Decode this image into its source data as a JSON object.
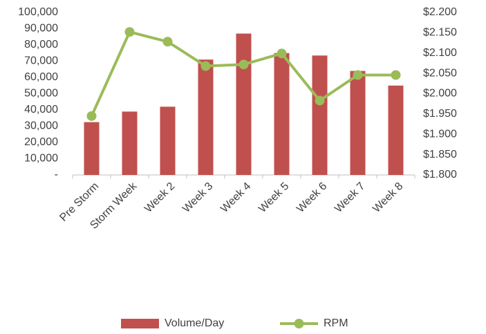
{
  "chart_data": {
    "type": "combo",
    "categories": [
      "Pre Storm",
      "Storm Week",
      "Week 2",
      "Week 3",
      "Week 4",
      "Week 5",
      "Week 6",
      "Week 7",
      "Week 8"
    ],
    "series": [
      {
        "name": "Volume/Day",
        "type": "bar",
        "color": "#c0504d",
        "values": [
          32500,
          39000,
          42000,
          71000,
          87000,
          75000,
          73500,
          64000,
          55000
        ]
      },
      {
        "name": "RPM",
        "type": "line",
        "axis": "y2",
        "color": "#9bbb59",
        "values": [
          1.945,
          2.152,
          2.128,
          2.068,
          2.072,
          2.099,
          1.983,
          2.046,
          2.046
        ]
      }
    ],
    "ylim": [
      0,
      100000
    ],
    "yticks": [
      {
        "value": 0,
        "label": "-"
      },
      {
        "value": 10000,
        "label": "10,000"
      },
      {
        "value": 20000,
        "label": "20,000"
      },
      {
        "value": 30000,
        "label": "30,000"
      },
      {
        "value": 40000,
        "label": "40,000"
      },
      {
        "value": 50000,
        "label": "50,000"
      },
      {
        "value": 60000,
        "label": "60,000"
      },
      {
        "value": 70000,
        "label": "70,000"
      },
      {
        "value": 80000,
        "label": "80,000"
      },
      {
        "value": 90000,
        "label": "90,000"
      },
      {
        "value": 100000,
        "label": "100,000"
      }
    ],
    "y2lim": [
      1.8,
      2.2
    ],
    "y2ticks": [
      {
        "value": 1.8,
        "label": "$1.800"
      },
      {
        "value": 1.85,
        "label": "$1.850"
      },
      {
        "value": 1.9,
        "label": "$1.900"
      },
      {
        "value": 1.95,
        "label": "$1.950"
      },
      {
        "value": 2.0,
        "label": "$2.000"
      },
      {
        "value": 2.05,
        "label": "$2.050"
      },
      {
        "value": 2.1,
        "label": "$2.100"
      },
      {
        "value": 2.15,
        "label": "$2.150"
      },
      {
        "value": 2.2,
        "label": "$2.200"
      }
    ],
    "legend": "bottom",
    "grid": false
  }
}
